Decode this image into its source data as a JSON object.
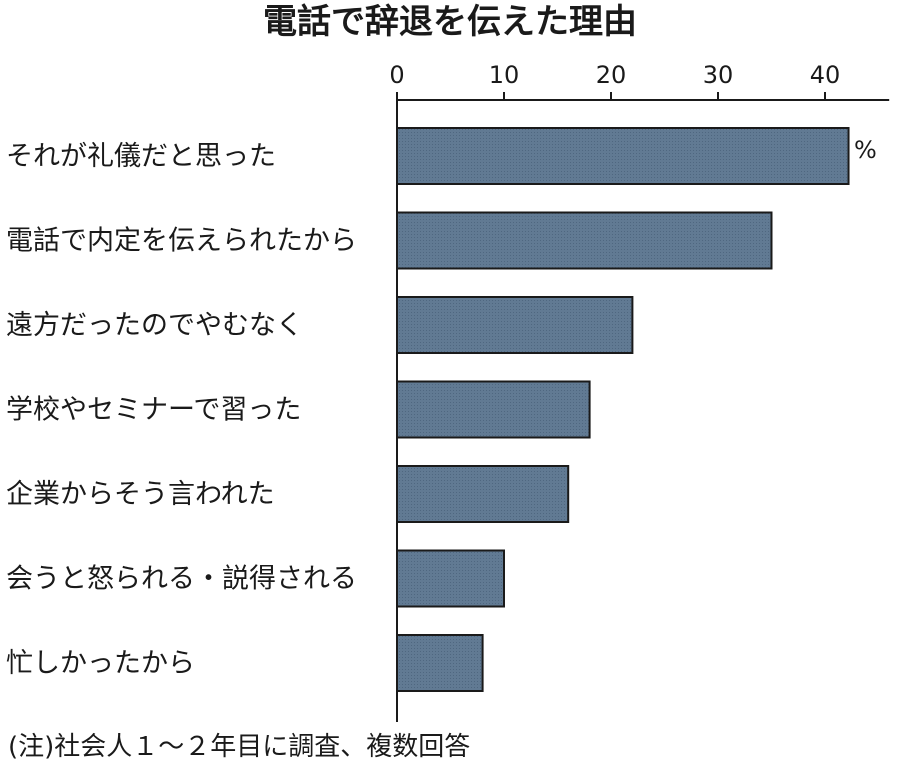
{
  "chart_data": {
    "type": "bar",
    "orientation": "horizontal",
    "title": "電話で辞退を伝えた理由",
    "unit": "%",
    "note": "(注)社会人１～２年目に調査、複数回答",
    "categories": [
      "それが礼儀だと思った",
      "電話で内定を伝えられたから",
      "遠方だったのでやむなく",
      "学校やセミナーで習った",
      "企業からそう言われた",
      "会うと怒られる・説得される",
      "忙しかったから"
    ],
    "values": [
      42.2,
      35.0,
      22.0,
      18.0,
      16.0,
      10.0,
      8.0
    ],
    "xlim": [
      0,
      46
    ],
    "xticks": [
      0,
      10,
      20,
      30,
      40
    ],
    "bar_color": "#617a93",
    "grid": false,
    "legend": "none"
  }
}
